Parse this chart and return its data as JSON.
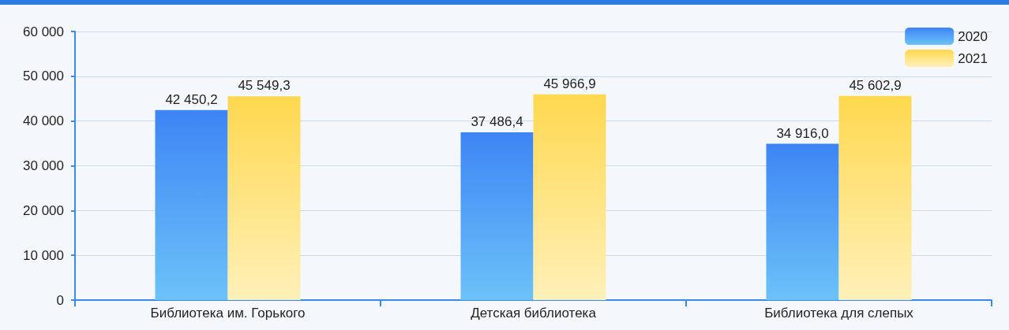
{
  "chart_data": {
    "type": "bar",
    "categories": [
      "Библиотека им. Горького",
      "Детская библиотека",
      "Библиотека для слепых"
    ],
    "series": [
      {
        "name": "2020",
        "color": "#3d85f5",
        "values": [
          42450.2,
          37486.4,
          34916.0
        ],
        "value_labels": [
          "42 450,2",
          "37 486,4",
          "34 916,0"
        ]
      },
      {
        "name": "2021",
        "color": "#ffd84f",
        "values": [
          45549.3,
          45966.9,
          45602.9
        ],
        "value_labels": [
          "45 549,3",
          "45 966,9",
          "45 602,9"
        ]
      }
    ],
    "ylim": [
      0,
      60000
    ],
    "yticks": [
      0,
      {
        "value": 10000,
        "label": "10 000"
      },
      {
        "value": 20000,
        "label": "20 000"
      },
      {
        "value": 30000,
        "label": "30 000"
      },
      {
        "value": 40000,
        "label": "40 000"
      },
      {
        "value": 50000,
        "label": "50 000"
      },
      {
        "value": 60000,
        "label": "60 000"
      }
    ],
    "grid": "y",
    "legend": "top right"
  }
}
